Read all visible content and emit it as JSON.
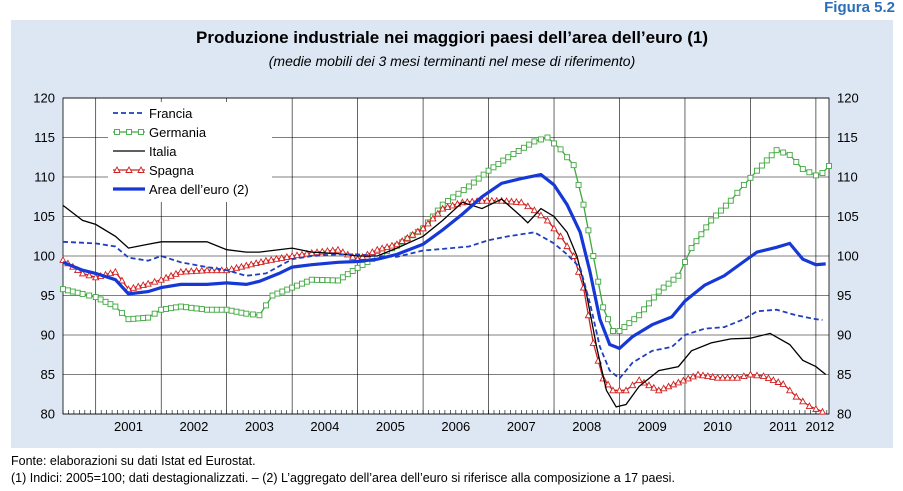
{
  "figure_label": "Figura 5.2",
  "title": "Produzione industriale nei maggiori paesi dell’area dell’euro (1)",
  "subtitle": "(medie mobili dei 3 mesi terminanti nel mese di riferimento)",
  "source": "Fonte: elaborazioni su dati Istat ed Eurostat.",
  "footnote": "(1) Indici: 2005=100; dati destagionalizzati. – (2) L’aggregato dell’area dell’euro si riferisce alla composizione a 17 paesi.",
  "colors": {
    "panel_bg": "#dde6f3",
    "blue": "#1f3fbf",
    "green": "#3fa83f",
    "black": "#000000",
    "red": "#d02020",
    "area_euro": "#1538d6"
  },
  "chart_data": {
    "type": "line",
    "ylim": [
      80,
      120
    ],
    "yticks": [
      80,
      85,
      90,
      95,
      100,
      105,
      110,
      115,
      120
    ],
    "xlim": [
      2000.5,
      2012.2
    ],
    "xtick_labels": [
      "2001",
      "2002",
      "2003",
      "2004",
      "2005",
      "2006",
      "2007",
      "2008",
      "2009",
      "2010",
      "2011",
      "2012"
    ],
    "grid": true,
    "legend_position": "top-left",
    "series": [
      {
        "name": "Francia",
        "style": "dashed",
        "color": "#1f3fbf",
        "points": [
          [
            2000.5,
            101.8
          ],
          [
            2001.0,
            101.6
          ],
          [
            2001.3,
            101.2
          ],
          [
            2001.5,
            99.8
          ],
          [
            2001.8,
            99.4
          ],
          [
            2002.0,
            100.0
          ],
          [
            2002.3,
            99.2
          ],
          [
            2002.7,
            98.6
          ],
          [
            2003.0,
            98.2
          ],
          [
            2003.3,
            97.5
          ],
          [
            2003.6,
            97.8
          ],
          [
            2004.0,
            99.6
          ],
          [
            2004.3,
            100.0
          ],
          [
            2004.7,
            100.2
          ],
          [
            2005.0,
            100.2
          ],
          [
            2005.3,
            100.0
          ],
          [
            2005.6,
            99.9
          ],
          [
            2006.0,
            100.7
          ],
          [
            2006.3,
            100.9
          ],
          [
            2006.7,
            101.2
          ],
          [
            2007.0,
            102.0
          ],
          [
            2007.3,
            102.5
          ],
          [
            2007.7,
            103.0
          ],
          [
            2008.0,
            101.6
          ],
          [
            2008.2,
            100.2
          ],
          [
            2008.4,
            98.5
          ],
          [
            2008.55,
            94.0
          ],
          [
            2008.7,
            88.5
          ],
          [
            2008.85,
            85.5
          ],
          [
            2009.0,
            84.5
          ],
          [
            2009.2,
            86.5
          ],
          [
            2009.5,
            88.0
          ],
          [
            2009.8,
            88.5
          ],
          [
            2010.0,
            90.0
          ],
          [
            2010.3,
            90.8
          ],
          [
            2010.6,
            91.0
          ],
          [
            2010.9,
            92.0
          ],
          [
            2011.1,
            93.0
          ],
          [
            2011.4,
            93.2
          ],
          [
            2011.7,
            92.5
          ],
          [
            2012.0,
            92.0
          ],
          [
            2012.1,
            91.9
          ]
        ]
      },
      {
        "name": "Germania",
        "style": "squares",
        "color": "#3fa83f",
        "points": [
          [
            2000.5,
            95.8
          ],
          [
            2000.8,
            95.2
          ],
          [
            2001.0,
            94.8
          ],
          [
            2001.3,
            93.6
          ],
          [
            2001.5,
            92.0
          ],
          [
            2001.8,
            92.2
          ],
          [
            2002.0,
            93.2
          ],
          [
            2002.3,
            93.6
          ],
          [
            2002.7,
            93.2
          ],
          [
            2003.0,
            93.2
          ],
          [
            2003.3,
            92.7
          ],
          [
            2003.5,
            92.5
          ],
          [
            2003.7,
            95.0
          ],
          [
            2004.0,
            96.0
          ],
          [
            2004.3,
            97.0
          ],
          [
            2004.7,
            96.9
          ],
          [
            2005.0,
            98.5
          ],
          [
            2005.3,
            100.0
          ],
          [
            2005.6,
            101.3
          ],
          [
            2006.0,
            103.5
          ],
          [
            2006.3,
            106.5
          ],
          [
            2006.7,
            108.8
          ],
          [
            2007.0,
            110.8
          ],
          [
            2007.3,
            112.5
          ],
          [
            2007.7,
            114.5
          ],
          [
            2007.9,
            115.0
          ],
          [
            2008.1,
            113.5
          ],
          [
            2008.3,
            111.5
          ],
          [
            2008.45,
            106.5
          ],
          [
            2008.6,
            100.0
          ],
          [
            2008.75,
            93.5
          ],
          [
            2008.9,
            90.5
          ],
          [
            2009.0,
            90.5
          ],
          [
            2009.3,
            92.5
          ],
          [
            2009.6,
            95.5
          ],
          [
            2009.9,
            97.5
          ],
          [
            2010.1,
            101.0
          ],
          [
            2010.4,
            104.5
          ],
          [
            2010.7,
            107.0
          ],
          [
            2010.9,
            109.0
          ],
          [
            2011.1,
            110.8
          ],
          [
            2011.4,
            113.4
          ],
          [
            2011.6,
            112.8
          ],
          [
            2011.8,
            111.0
          ],
          [
            2012.0,
            110.2
          ],
          [
            2012.1,
            110.5
          ],
          [
            2012.2,
            111.4
          ]
        ]
      },
      {
        "name": "Italia",
        "style": "solid",
        "color": "#000000",
        "points": [
          [
            2000.5,
            106.4
          ],
          [
            2000.8,
            104.5
          ],
          [
            2001.0,
            104.0
          ],
          [
            2001.3,
            102.5
          ],
          [
            2001.5,
            101.0
          ],
          [
            2001.8,
            101.5
          ],
          [
            2002.0,
            101.8
          ],
          [
            2002.3,
            101.8
          ],
          [
            2002.7,
            101.8
          ],
          [
            2003.0,
            100.8
          ],
          [
            2003.3,
            100.5
          ],
          [
            2003.5,
            100.5
          ],
          [
            2003.7,
            100.7
          ],
          [
            2004.0,
            101.0
          ],
          [
            2004.3,
            100.5
          ],
          [
            2004.7,
            100.3
          ],
          [
            2005.0,
            100.0
          ],
          [
            2005.3,
            100.0
          ],
          [
            2005.6,
            101.0
          ],
          [
            2006.0,
            102.5
          ],
          [
            2006.3,
            104.5
          ],
          [
            2006.6,
            106.8
          ],
          [
            2006.9,
            106.0
          ],
          [
            2007.2,
            107.2
          ],
          [
            2007.5,
            105.0
          ],
          [
            2007.6,
            104.2
          ],
          [
            2007.8,
            106.0
          ],
          [
            2008.0,
            105.0
          ],
          [
            2008.2,
            103.0
          ],
          [
            2008.35,
            100.0
          ],
          [
            2008.5,
            95.0
          ],
          [
            2008.65,
            88.5
          ],
          [
            2008.8,
            83.0
          ],
          [
            2008.95,
            80.9
          ],
          [
            2009.1,
            81.2
          ],
          [
            2009.3,
            83.5
          ],
          [
            2009.6,
            85.5
          ],
          [
            2009.9,
            86.0
          ],
          [
            2010.1,
            88.0
          ],
          [
            2010.4,
            89.0
          ],
          [
            2010.7,
            89.5
          ],
          [
            2011.0,
            89.6
          ],
          [
            2011.3,
            90.2
          ],
          [
            2011.6,
            88.8
          ],
          [
            2011.8,
            86.8
          ],
          [
            2012.0,
            86.0
          ],
          [
            2012.15,
            85.0
          ]
        ]
      },
      {
        "name": "Spagna",
        "style": "triangles",
        "color": "#d02020",
        "points": [
          [
            2000.5,
            99.5
          ],
          [
            2000.8,
            97.8
          ],
          [
            2001.0,
            97.3
          ],
          [
            2001.3,
            98.0
          ],
          [
            2001.5,
            95.8
          ],
          [
            2001.8,
            96.5
          ],
          [
            2002.0,
            97.0
          ],
          [
            2002.3,
            98.0
          ],
          [
            2002.7,
            98.2
          ],
          [
            2003.0,
            98.2
          ],
          [
            2003.3,
            98.8
          ],
          [
            2003.6,
            99.4
          ],
          [
            2004.0,
            100.0
          ],
          [
            2004.3,
            100.4
          ],
          [
            2004.7,
            100.8
          ],
          [
            2005.0,
            99.6
          ],
          [
            2005.3,
            100.8
          ],
          [
            2005.6,
            101.5
          ],
          [
            2006.0,
            103.5
          ],
          [
            2006.3,
            106.0
          ],
          [
            2006.6,
            106.8
          ],
          [
            2006.9,
            107.0
          ],
          [
            2007.2,
            107.0
          ],
          [
            2007.5,
            106.8
          ],
          [
            2007.7,
            105.8
          ],
          [
            2007.9,
            104.5
          ],
          [
            2008.1,
            102.5
          ],
          [
            2008.3,
            100.0
          ],
          [
            2008.45,
            96.0
          ],
          [
            2008.6,
            89.0
          ],
          [
            2008.75,
            84.5
          ],
          [
            2008.9,
            83.0
          ],
          [
            2009.1,
            83.0
          ],
          [
            2009.3,
            84.3
          ],
          [
            2009.6,
            83.0
          ],
          [
            2009.9,
            84.0
          ],
          [
            2010.2,
            85.0
          ],
          [
            2010.5,
            84.6
          ],
          [
            2010.8,
            84.6
          ],
          [
            2011.0,
            85.0
          ],
          [
            2011.2,
            84.8
          ],
          [
            2011.5,
            83.8
          ],
          [
            2011.7,
            82.2
          ],
          [
            2011.9,
            81.0
          ],
          [
            2012.1,
            80.3
          ]
        ]
      },
      {
        "name": "Area dell’euro (2)",
        "style": "thick",
        "color": "#1538d6",
        "points": [
          [
            2000.5,
            99.2
          ],
          [
            2000.8,
            98.2
          ],
          [
            2001.0,
            97.8
          ],
          [
            2001.3,
            97.0
          ],
          [
            2001.5,
            95.2
          ],
          [
            2001.8,
            95.5
          ],
          [
            2002.0,
            96.0
          ],
          [
            2002.3,
            96.4
          ],
          [
            2002.7,
            96.4
          ],
          [
            2003.0,
            96.6
          ],
          [
            2003.3,
            96.4
          ],
          [
            2003.5,
            96.8
          ],
          [
            2003.8,
            97.8
          ],
          [
            2004.0,
            98.6
          ],
          [
            2004.3,
            98.9
          ],
          [
            2004.7,
            99.2
          ],
          [
            2005.0,
            99.3
          ],
          [
            2005.3,
            99.6
          ],
          [
            2005.6,
            100.2
          ],
          [
            2006.0,
            101.5
          ],
          [
            2006.3,
            103.3
          ],
          [
            2006.6,
            105.3
          ],
          [
            2006.9,
            107.5
          ],
          [
            2007.2,
            109.2
          ],
          [
            2007.5,
            109.8
          ],
          [
            2007.8,
            110.3
          ],
          [
            2008.0,
            109.0
          ],
          [
            2008.2,
            106.5
          ],
          [
            2008.4,
            103.0
          ],
          [
            2008.55,
            98.0
          ],
          [
            2008.7,
            92.0
          ],
          [
            2008.85,
            88.8
          ],
          [
            2009.0,
            88.3
          ],
          [
            2009.2,
            89.8
          ],
          [
            2009.5,
            91.3
          ],
          [
            2009.8,
            92.3
          ],
          [
            2010.0,
            94.3
          ],
          [
            2010.3,
            96.3
          ],
          [
            2010.6,
            97.5
          ],
          [
            2010.9,
            99.3
          ],
          [
            2011.1,
            100.5
          ],
          [
            2011.4,
            101.1
          ],
          [
            2011.6,
            101.6
          ],
          [
            2011.8,
            99.6
          ],
          [
            2012.0,
            98.9
          ],
          [
            2012.15,
            99.0
          ]
        ]
      }
    ]
  }
}
